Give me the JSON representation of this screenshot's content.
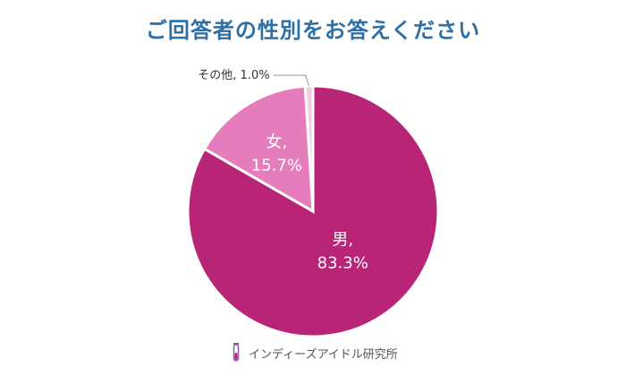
{
  "title": "ご回答者の性別をお答えください",
  "chart_data": {
    "type": "pie",
    "slices": [
      {
        "label": "男",
        "value": 83.3,
        "display": "83.3%",
        "color": "#b82577"
      },
      {
        "label": "女",
        "value": 15.7,
        "display": "15.7%",
        "color": "#e57dbd"
      },
      {
        "label": "その他",
        "value": 1.0,
        "display": "1.0%",
        "color": "#f3cde4"
      }
    ]
  },
  "footer": {
    "text": "インディーズアイドル研究所",
    "icon": "test-tube-icon"
  }
}
